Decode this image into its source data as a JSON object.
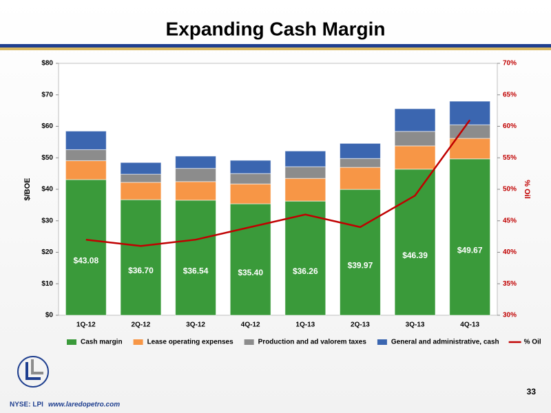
{
  "chart_data": {
    "type": "bar",
    "stacked": true,
    "title": "Expanding Cash Margin",
    "y_label": "$/BOE",
    "y2_label": "% Oil",
    "categories": [
      "1Q-12",
      "2Q-12",
      "3Q-12",
      "4Q-12",
      "1Q-13",
      "2Q-13",
      "3Q-13",
      "4Q-13"
    ],
    "series": [
      {
        "name": "Cash margin",
        "color": "#3a9a3a",
        "values": [
          43.08,
          36.7,
          36.54,
          35.4,
          36.26,
          39.97,
          46.39,
          49.67
        ],
        "value_labels": [
          "$43.08",
          "$36.70",
          "$36.54",
          "$35.40",
          "$36.26",
          "$39.97",
          "$46.39",
          "$49.67"
        ]
      },
      {
        "name": "Lease operating expenses",
        "color": "#f79646",
        "values": [
          6.0,
          5.5,
          5.9,
          6.3,
          7.2,
          7.0,
          7.4,
          6.5
        ]
      },
      {
        "name": "Production and ad valorem taxes",
        "color": "#8c8c8c",
        "values": [
          3.5,
          2.6,
          4.2,
          3.3,
          3.7,
          2.8,
          4.6,
          4.3
        ]
      },
      {
        "name": "General and administrative, cash",
        "color": "#3b66b0",
        "values": [
          5.9,
          3.7,
          3.9,
          4.2,
          5.0,
          4.8,
          7.2,
          7.5
        ]
      },
      {
        "name": "% Oil",
        "type": "line",
        "axis": "y2",
        "color": "#c00000",
        "values": [
          42,
          41,
          42,
          44,
          46,
          44,
          49,
          61
        ]
      }
    ],
    "ylim": [
      0,
      80
    ],
    "yticks": [
      {
        "value": 0,
        "label": "$0"
      },
      {
        "value": 10,
        "label": "$10"
      },
      {
        "value": 20,
        "label": "$20"
      },
      {
        "value": 30,
        "label": "$30"
      },
      {
        "value": 40,
        "label": "$40"
      },
      {
        "value": 50,
        "label": "$50"
      },
      {
        "value": 60,
        "label": "$60"
      },
      {
        "value": 70,
        "label": "$70"
      },
      {
        "value": 80,
        "label": "$80"
      }
    ],
    "y2lim": [
      30,
      70
    ],
    "y2ticks": [
      {
        "value": 30,
        "label": "30%"
      },
      {
        "value": 35,
        "label": "35%"
      },
      {
        "value": 40,
        "label": "40%"
      },
      {
        "value": 45,
        "label": "45%"
      },
      {
        "value": 50,
        "label": "50%"
      },
      {
        "value": 55,
        "label": "55%"
      },
      {
        "value": 60,
        "label": "60%"
      },
      {
        "value": 65,
        "label": "65%"
      },
      {
        "value": 70,
        "label": "70%"
      }
    ],
    "grid": false,
    "legend": "bottom"
  },
  "page_number": "33",
  "footer": {
    "ticker": "NYSE: LPI",
    "website": "www.laredopetro.com"
  }
}
